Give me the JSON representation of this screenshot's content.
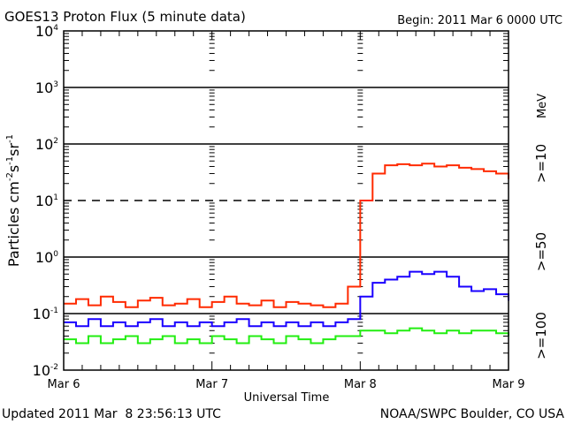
{
  "chart_data": {
    "type": "line",
    "title": "GOES13 Proton Flux (5 minute data)",
    "begin_label": "Begin: 2011 Mar 6 0000 UTC",
    "xlabel": "Universal Time",
    "ylabel": "Particles cm-2s-1sr-1",
    "ylabel_parts": [
      "Particles cm",
      "-2",
      "s",
      "-1",
      "sr",
      "-1"
    ],
    "yscale": "log",
    "ylim": [
      0.01,
      10000
    ],
    "y_tick_labels": [
      {
        "value": 10000,
        "base": "10",
        "exp": "4"
      },
      {
        "value": 1000,
        "base": "10",
        "exp": "3"
      },
      {
        "value": 100,
        "base": "10",
        "exp": "2"
      },
      {
        "value": 10,
        "base": "10",
        "exp": "1"
      },
      {
        "value": 1,
        "base": "10",
        "exp": "0"
      },
      {
        "value": 0.1,
        "base": "10",
        "exp": "-1"
      },
      {
        "value": 0.01,
        "base": "10",
        "exp": "-2"
      }
    ],
    "xlim_hours": [
      0,
      72
    ],
    "x_tick_labels": [
      {
        "hour": 0,
        "label": "Mar 6"
      },
      {
        "hour": 24,
        "label": "Mar 7"
      },
      {
        "hour": 48,
        "label": "Mar 8"
      },
      {
        "hour": 72,
        "label": "Mar 9"
      }
    ],
    "x_hours": [
      0,
      2,
      4,
      6,
      8,
      10,
      12,
      14,
      16,
      18,
      20,
      22,
      24,
      26,
      28,
      30,
      32,
      34,
      36,
      38,
      40,
      42,
      44,
      46,
      48,
      50,
      52,
      54,
      56,
      58,
      60,
      62,
      64,
      66,
      68,
      70,
      72
    ],
    "series": [
      {
        "name": ">=10",
        "color": "#ff2a00",
        "values": [
          0.15,
          0.18,
          0.14,
          0.2,
          0.16,
          0.13,
          0.17,
          0.19,
          0.14,
          0.15,
          0.18,
          0.13,
          0.16,
          0.2,
          0.15,
          0.14,
          0.17,
          0.13,
          0.16,
          0.15,
          0.14,
          0.13,
          0.15,
          0.3,
          10,
          30,
          42,
          44,
          42,
          45,
          40,
          42,
          38,
          36,
          33,
          30,
          24
        ]
      },
      {
        "name": ">=50",
        "color": "#1a00ff",
        "values": [
          0.07,
          0.06,
          0.08,
          0.06,
          0.07,
          0.06,
          0.07,
          0.08,
          0.06,
          0.07,
          0.06,
          0.07,
          0.06,
          0.07,
          0.08,
          0.06,
          0.07,
          0.06,
          0.07,
          0.06,
          0.07,
          0.06,
          0.07,
          0.08,
          0.2,
          0.35,
          0.4,
          0.45,
          0.55,
          0.5,
          0.55,
          0.45,
          0.3,
          0.25,
          0.27,
          0.22,
          0.17
        ]
      },
      {
        "name": ">=100",
        "color": "#22ee11",
        "values": [
          0.035,
          0.03,
          0.04,
          0.03,
          0.035,
          0.04,
          0.03,
          0.035,
          0.04,
          0.03,
          0.035,
          0.03,
          0.04,
          0.035,
          0.03,
          0.04,
          0.035,
          0.03,
          0.04,
          0.035,
          0.03,
          0.035,
          0.04,
          0.04,
          0.05,
          0.05,
          0.045,
          0.05,
          0.055,
          0.05,
          0.045,
          0.05,
          0.045,
          0.05,
          0.05,
          0.045,
          0.04
        ]
      }
    ],
    "unit_label": "MeV",
    "grid": true,
    "legend": "right"
  },
  "footer": {
    "updated": "Updated 2011 Mar  8 23:56:13 UTC",
    "source": "NOAA/SWPC Boulder, CO USA"
  }
}
